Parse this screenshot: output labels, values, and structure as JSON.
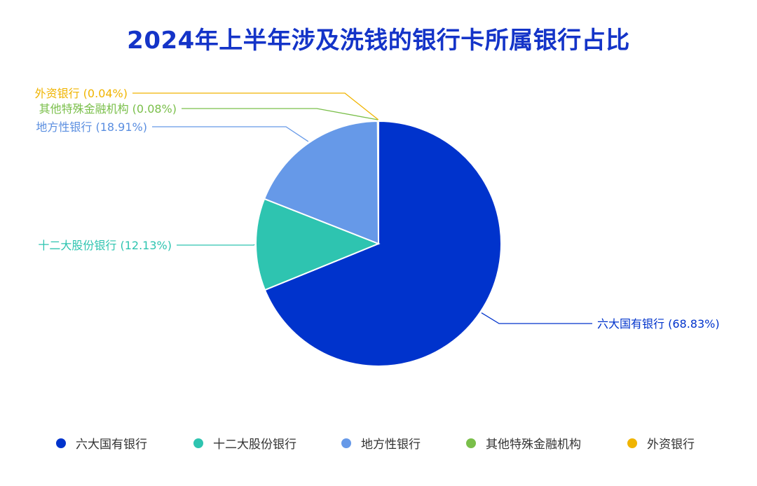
{
  "chart_data": {
    "type": "pie",
    "title": "2024年上半年涉及洗钱的银行卡所属银行占比",
    "slices": [
      {
        "name": "六大国有银行",
        "value": 68.83,
        "label": "六大国有银行 (68.83%)",
        "color": "#0033cc"
      },
      {
        "name": "十二大股份银行",
        "value": 12.13,
        "label": "十二大股份银行 (12.13%)",
        "color": "#2ec4b0"
      },
      {
        "name": "地方性银行",
        "value": 18.91,
        "label": "地方性银行 (18.91%)",
        "color": "#6699e8"
      },
      {
        "name": "其他特殊金融机构",
        "value": 0.08,
        "label": "其他特殊金融机构 (0.08%)",
        "color": "#7abf4a"
      },
      {
        "name": "外资银行",
        "value": 0.04,
        "label": "外资银行 (0.04%)",
        "color": "#f0b400"
      }
    ],
    "legend_position": "bottom"
  }
}
